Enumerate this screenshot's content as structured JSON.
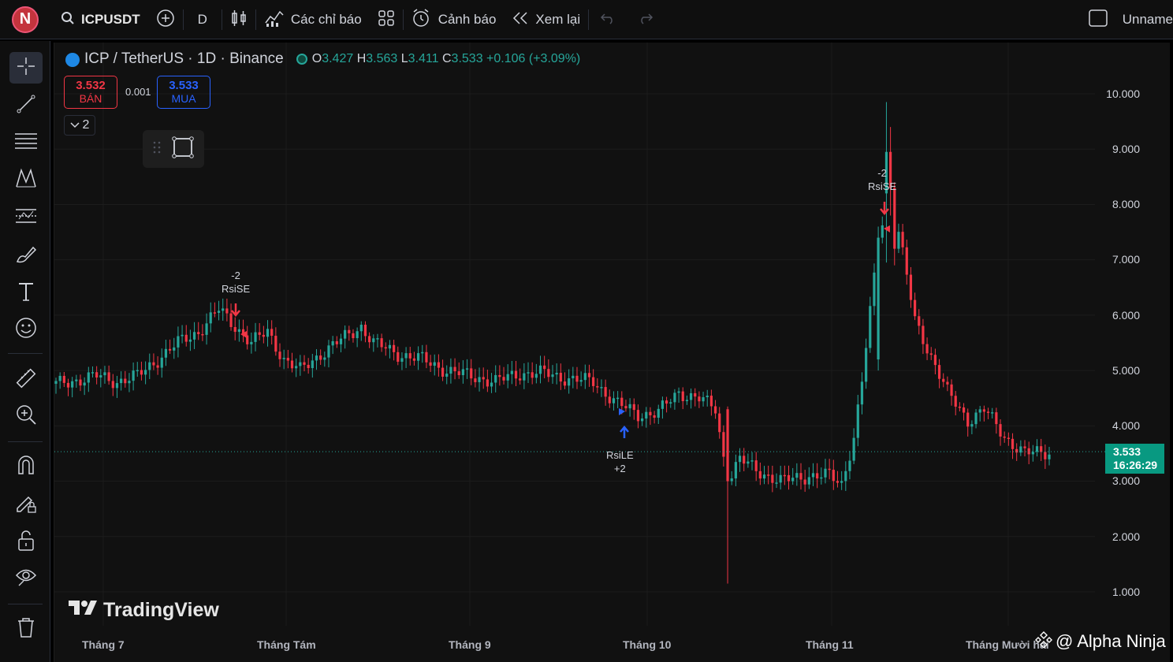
{
  "topbar": {
    "logo_letter": "N",
    "symbol": "ICPUSDT",
    "interval": "D",
    "indicators_label": "Các chỉ báo",
    "alerts_label": "Cảnh báo",
    "replay_label": "Xem lại",
    "layout_name": "Unname"
  },
  "legend": {
    "title": "ICP / TetherUS · 1D · Binance",
    "o_label": "O",
    "o": "3.427",
    "h_label": "H",
    "h": "3.563",
    "l_label": "L",
    "l": "3.411",
    "c_label": "C",
    "c": "3.533",
    "change": "+0.106 (+3.09%)"
  },
  "trade": {
    "sell_price": "3.532",
    "sell_label": "BÁN",
    "spread": "0.001",
    "buy_price": "3.533",
    "buy_label": "MUA",
    "collapse_count": "2"
  },
  "current_price": {
    "price": "3.533",
    "countdown": "16:26:29"
  },
  "branding": {
    "tradingview": "TradingView",
    "watermark": "@ Alpha Ninja"
  },
  "colors": {
    "up": "#26a69a",
    "down": "#f23645",
    "buy": "#2962ff",
    "background": "#111111"
  },
  "left_tools": [
    "crosshair-icon",
    "trendline-icon",
    "fib-icon",
    "pattern-icon",
    "prediction-icon",
    "brush-icon",
    "text-icon",
    "emoji-icon",
    "ruler-icon",
    "zoom-in-icon",
    "magnet-icon",
    "lock-drawing-icon",
    "lock-icon",
    "eye-icon",
    "trash-icon"
  ],
  "chart_data": {
    "type": "candlestick",
    "y_ticks": [
      "10.000",
      "9.000",
      "8.000",
      "7.000",
      "6.000",
      "5.000",
      "4.000",
      "3.000",
      "2.000",
      "1.000"
    ],
    "x_labels": [
      "Tháng 7",
      "Tháng Tám",
      "Tháng 9",
      "Tháng 10",
      "Tháng 11",
      "Tháng Mười hai"
    ],
    "ylim": [
      0.5,
      10.5
    ],
    "grid": true,
    "signals": [
      {
        "label": "RsiSE",
        "qty": "-2",
        "side": "sell"
      },
      {
        "label": "RsiLE",
        "qty": "+2",
        "side": "buy"
      },
      {
        "label": "RsiSE",
        "qty": "-2",
        "side": "sell"
      }
    ],
    "anchors": [
      [
        0,
        4.75
      ],
      [
        10,
        4.9
      ],
      [
        15,
        4.8
      ],
      [
        20,
        4.9
      ],
      [
        25,
        5.2
      ],
      [
        30,
        5.5
      ],
      [
        35,
        5.7
      ],
      [
        40,
        6.1
      ],
      [
        44,
        5.8
      ],
      [
        48,
        5.5
      ],
      [
        52,
        5.7
      ],
      [
        56,
        5.2
      ],
      [
        60,
        5.0
      ],
      [
        65,
        5.3
      ],
      [
        70,
        5.55
      ],
      [
        75,
        5.8
      ],
      [
        78,
        5.5
      ],
      [
        84,
        5.3
      ],
      [
        90,
        5.2
      ],
      [
        96,
        5.0
      ],
      [
        102,
        4.9
      ],
      [
        108,
        4.8
      ],
      [
        114,
        4.95
      ],
      [
        120,
        4.95
      ],
      [
        126,
        4.85
      ],
      [
        132,
        4.8
      ],
      [
        138,
        4.4
      ],
      [
        143,
        4.2
      ],
      [
        148,
        4.25
      ],
      [
        153,
        4.6
      ],
      [
        158,
        4.5
      ],
      [
        162,
        4.3
      ],
      [
        165,
        3.0
      ],
      [
        168,
        3.4
      ],
      [
        172,
        3.2
      ],
      [
        178,
        3.0
      ],
      [
        185,
        3.1
      ],
      [
        190,
        3.1
      ],
      [
        193,
        2.95
      ],
      [
        196,
        3.8
      ],
      [
        198,
        4.8
      ],
      [
        202,
        7.3
      ],
      [
        205,
        8.5
      ],
      [
        207,
        7.5
      ],
      [
        211,
        5.9
      ],
      [
        216,
        5.1
      ],
      [
        219,
        4.6
      ],
      [
        224,
        4.1
      ],
      [
        228,
        4.3
      ],
      [
        233,
        3.8
      ],
      [
        238,
        3.5
      ],
      [
        244,
        3.53
      ]
    ]
  }
}
